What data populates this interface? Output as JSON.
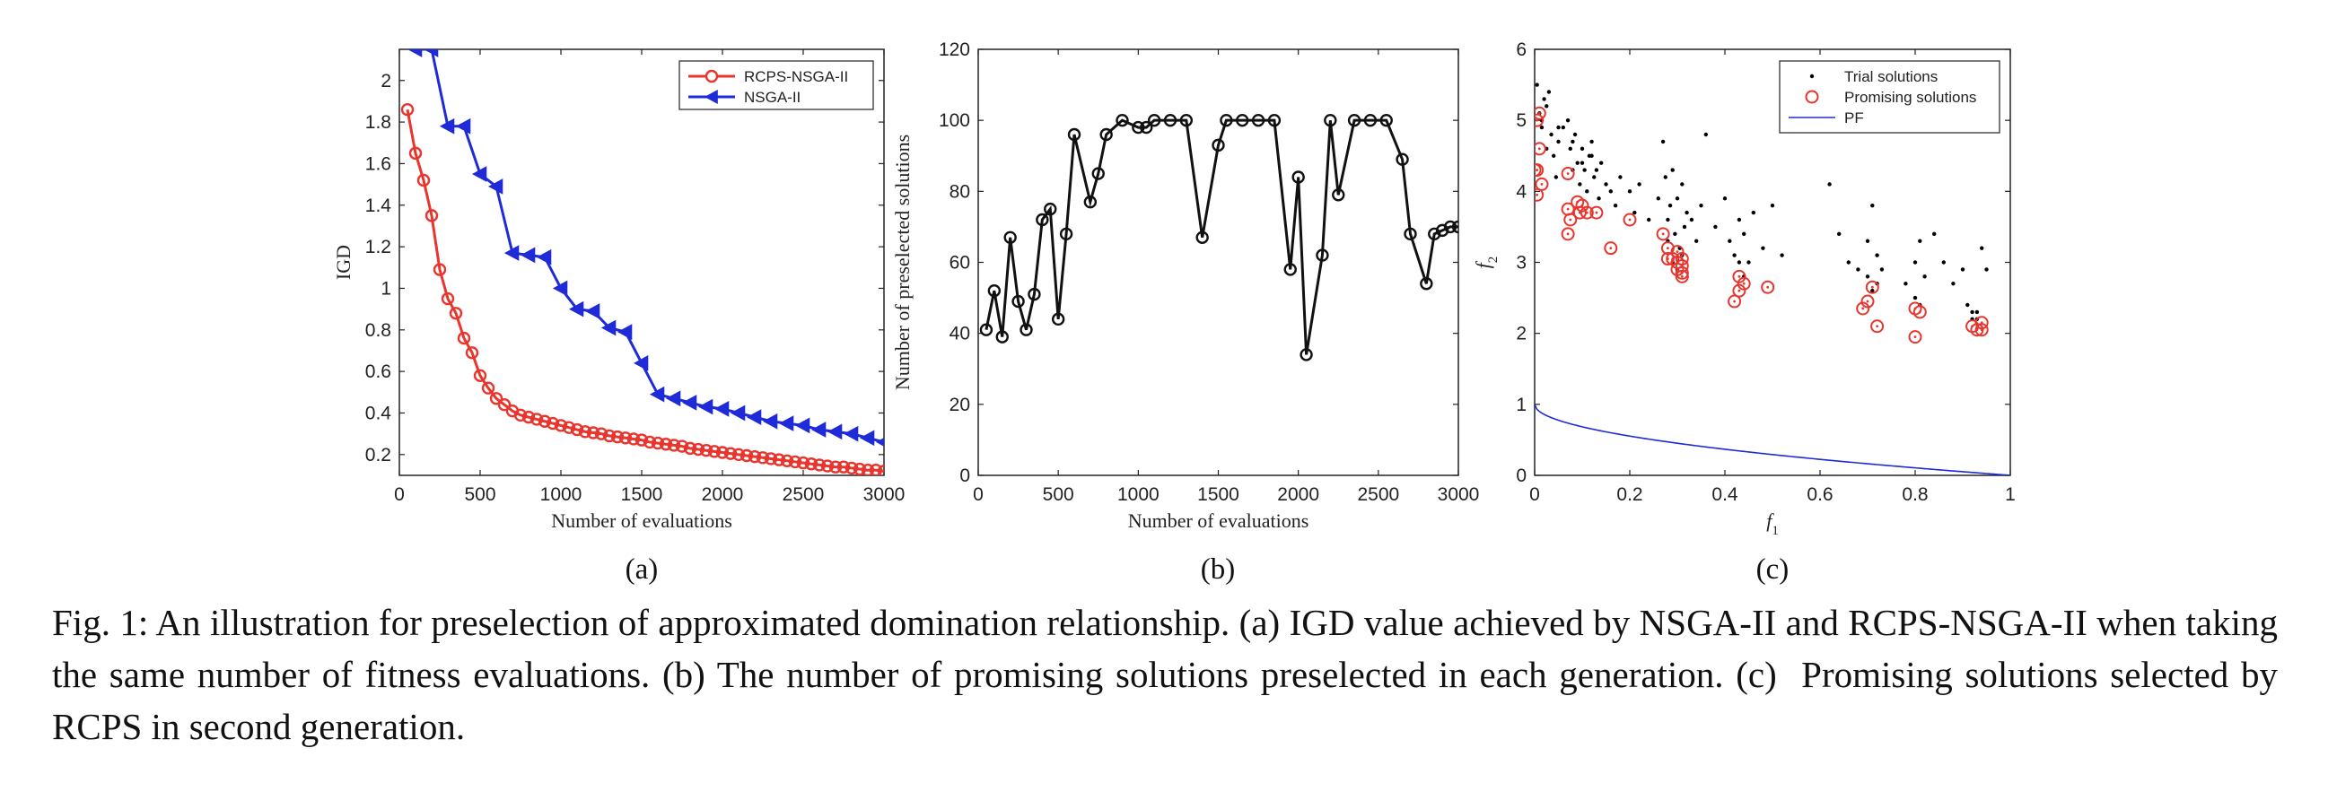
{
  "chart_data": [
    {
      "id": "a",
      "type": "line",
      "xlabel": "Number of evaluations",
      "ylabel": "IGD",
      "xlim": [
        0,
        3000
      ],
      "ylim": [
        0.1,
        2.15
      ],
      "xticks": [
        0,
        500,
        1000,
        1500,
        2000,
        2500,
        3000
      ],
      "yticks": [
        0.2,
        0.4,
        0.6,
        0.8,
        1,
        1.2,
        1.4,
        1.6,
        1.8,
        2
      ],
      "legend_position": "top-right",
      "sublabel": "(a)",
      "series": [
        {
          "name": "RCPS-NSGA-II",
          "color": "#e8352e",
          "marker": "circle",
          "x": [
            50,
            100,
            150,
            200,
            250,
            300,
            350,
            400,
            450,
            500,
            550,
            600,
            650,
            700,
            750,
            800,
            850,
            900,
            950,
            1000,
            1050,
            1100,
            1150,
            1200,
            1250,
            1300,
            1350,
            1400,
            1450,
            1500,
            1550,
            1600,
            1650,
            1700,
            1750,
            1800,
            1850,
            1900,
            1950,
            2000,
            2050,
            2100,
            2150,
            2200,
            2250,
            2300,
            2350,
            2400,
            2450,
            2500,
            2550,
            2600,
            2650,
            2700,
            2750,
            2800,
            2850,
            2900,
            2950,
            3000
          ],
          "y": [
            1.86,
            1.65,
            1.52,
            1.35,
            1.09,
            0.95,
            0.88,
            0.76,
            0.69,
            0.58,
            0.52,
            0.47,
            0.44,
            0.41,
            0.39,
            0.38,
            0.37,
            0.36,
            0.35,
            0.34,
            0.33,
            0.32,
            0.31,
            0.305,
            0.3,
            0.29,
            0.285,
            0.28,
            0.275,
            0.27,
            0.26,
            0.255,
            0.25,
            0.245,
            0.24,
            0.23,
            0.225,
            0.22,
            0.215,
            0.21,
            0.205,
            0.2,
            0.195,
            0.19,
            0.185,
            0.18,
            0.175,
            0.17,
            0.165,
            0.16,
            0.155,
            0.15,
            0.145,
            0.14,
            0.14,
            0.135,
            0.13,
            0.125,
            0.125,
            0.12
          ]
        },
        {
          "name": "NSGA-II",
          "color": "#1f2bd6",
          "marker": "triangle-left",
          "x": [
            100,
            200,
            300,
            400,
            500,
            600,
            700,
            800,
            900,
            1000,
            1100,
            1200,
            1300,
            1400,
            1500,
            1600,
            1700,
            1800,
            1900,
            2000,
            2100,
            2200,
            2300,
            2400,
            2500,
            2600,
            2700,
            2800,
            2900,
            3000
          ],
          "y": [
            2.15,
            2.15,
            1.78,
            1.78,
            1.55,
            1.49,
            1.17,
            1.16,
            1.15,
            1.0,
            0.9,
            0.89,
            0.81,
            0.79,
            0.64,
            0.49,
            0.47,
            0.45,
            0.43,
            0.42,
            0.4,
            0.38,
            0.36,
            0.35,
            0.34,
            0.32,
            0.31,
            0.3,
            0.28,
            0.26
          ]
        }
      ]
    },
    {
      "id": "b",
      "type": "line",
      "xlabel": "Number of evaluations",
      "ylabel": "Number of preselected solutions",
      "xlim": [
        0,
        3000
      ],
      "ylim": [
        0,
        120
      ],
      "xticks": [
        0,
        500,
        1000,
        1500,
        2000,
        2500,
        3000
      ],
      "yticks": [
        0,
        20,
        40,
        60,
        80,
        100,
        120
      ],
      "sublabel": "(b)",
      "series": [
        {
          "name": "preselected",
          "color": "#111111",
          "marker": "circle",
          "x": [
            50,
            100,
            150,
            200,
            250,
            300,
            350,
            400,
            450,
            500,
            550,
            600,
            700,
            750,
            800,
            900,
            1000,
            1050,
            1100,
            1200,
            1300,
            1400,
            1500,
            1550,
            1650,
            1750,
            1850,
            1950,
            2000,
            2050,
            2150,
            2200,
            2250,
            2350,
            2450,
            2550,
            2650,
            2700,
            2800,
            2850,
            2900,
            2950,
            3000
          ],
          "y": [
            41,
            52,
            39,
            67,
            49,
            41,
            51,
            72,
            75,
            44,
            68,
            96,
            77,
            85,
            96,
            100,
            98,
            98,
            100,
            100,
            100,
            67,
            93,
            100,
            100,
            100,
            100,
            58,
            84,
            34,
            62,
            100,
            79,
            100,
            100,
            100,
            89,
            68,
            54,
            68,
            69,
            70,
            70
          ]
        }
      ]
    },
    {
      "id": "c",
      "type": "scatter",
      "xlabel": "f",
      "xlabel_sub": "1",
      "ylabel": "f",
      "ylabel_sub": "2",
      "xlim": [
        0,
        1
      ],
      "ylim": [
        0,
        6
      ],
      "xticks": [
        0,
        0.2,
        0.4,
        0.6,
        0.8,
        1
      ],
      "yticks": [
        0,
        1,
        2,
        3,
        4,
        5,
        6
      ],
      "legend_position": "top-right",
      "sublabel": "(c)",
      "series": [
        {
          "name": "Trial solutions",
          "color": "#000000",
          "marker": "dot",
          "x": [
            0.005,
            0.01,
            0.015,
            0.02,
            0.025,
            0.03,
            0.035,
            0.04,
            0.045,
            0.05,
            0.06,
            0.07,
            0.075,
            0.08,
            0.085,
            0.09,
            0.095,
            0.1,
            0.105,
            0.11,
            0.115,
            0.12,
            0.125,
            0.13,
            0.135,
            0.14,
            0.15,
            0.16,
            0.17,
            0.18,
            0.2,
            0.21,
            0.22,
            0.24,
            0.26,
            0.27,
            0.275,
            0.28,
            0.285,
            0.29,
            0.295,
            0.3,
            0.305,
            0.31,
            0.315,
            0.32,
            0.33,
            0.34,
            0.35,
            0.36,
            0.38,
            0.4,
            0.41,
            0.42,
            0.43,
            0.44,
            0.45,
            0.46,
            0.48,
            0.5,
            0.52,
            0.62,
            0.64,
            0.66,
            0.68,
            0.7,
            0.7,
            0.71,
            0.72,
            0.73,
            0.78,
            0.8,
            0.81,
            0.82,
            0.84,
            0.86,
            0.88,
            0.9,
            0.91,
            0.92,
            0.93,
            0.94,
            0.95,
            0.015,
            0.025,
            0.05,
            0.08,
            0.1,
            0.12,
            0.29,
            0.3,
            0.31,
            0.28,
            0.43,
            0.44,
            0.71,
            0.72,
            0.8,
            0.81,
            0.92,
            0.93
          ],
          "y": [
            5.5,
            5.1,
            4.9,
            5.3,
            4.6,
            5.4,
            4.8,
            4.5,
            4.2,
            4.7,
            4.9,
            5.0,
            4.6,
            4.3,
            4.8,
            4.4,
            4.1,
            4.6,
            4.3,
            4.0,
            4.5,
            4.7,
            4.2,
            4.3,
            3.9,
            4.4,
            4.1,
            4.0,
            3.8,
            4.2,
            4.0,
            3.7,
            4.1,
            3.6,
            3.9,
            4.7,
            4.2,
            3.6,
            3.8,
            4.3,
            3.4,
            3.9,
            3.2,
            4.1,
            3.5,
            3.7,
            3.6,
            3.3,
            3.8,
            4.8,
            3.5,
            3.9,
            3.3,
            3.1,
            3.6,
            3.4,
            3.0,
            3.7,
            3.2,
            3.8,
            3.1,
            4.1,
            3.4,
            3.0,
            2.9,
            3.3,
            2.8,
            3.8,
            3.1,
            2.9,
            2.7,
            3.0,
            3.3,
            2.8,
            3.4,
            3.0,
            2.7,
            2.9,
            2.4,
            2.2,
            2.3,
            3.2,
            2.9,
            5.0,
            5.2,
            4.9,
            4.7,
            4.4,
            4.5,
            3.0,
            2.9,
            3.1,
            3.3,
            3.0,
            2.8,
            2.6,
            2.7,
            2.5,
            2.4,
            2.3,
            2.2
          ]
        },
        {
          "name": "Promising solutions",
          "color": "#e8352e",
          "marker": "circle-open",
          "x": [
            0.0,
            0.005,
            0.01,
            0.005,
            0.01,
            0.015,
            0.005,
            0.07,
            0.07,
            0.075,
            0.07,
            0.09,
            0.1,
            0.095,
            0.11,
            0.13,
            0.16,
            0.2,
            0.27,
            0.28,
            0.28,
            0.29,
            0.3,
            0.3,
            0.3,
            0.31,
            0.31,
            0.31,
            0.31,
            0.42,
            0.43,
            0.43,
            0.44,
            0.49,
            0.69,
            0.7,
            0.71,
            0.72,
            0.8,
            0.8,
            0.81,
            0.92,
            0.93,
            0.94,
            0.94
          ],
          "y": [
            4.3,
            4.3,
            5.1,
            5.0,
            4.6,
            4.1,
            3.95,
            4.25,
            3.75,
            3.6,
            3.4,
            3.85,
            3.8,
            3.7,
            3.7,
            3.7,
            3.2,
            3.6,
            3.4,
            3.2,
            3.05,
            3.05,
            3.15,
            3.0,
            2.9,
            3.05,
            2.95,
            2.85,
            2.8,
            2.45,
            2.6,
            2.8,
            2.7,
            2.65,
            2.35,
            2.45,
            2.65,
            2.1,
            2.35,
            1.95,
            2.3,
            2.1,
            2.05,
            2.15,
            2.05
          ]
        },
        {
          "name": "PF",
          "color": "#1f2bd6",
          "marker": "none",
          "formula": "1 - sqrt(f1)"
        }
      ]
    }
  ],
  "caption": "Fig. 1: An illustration for preselection of approximated domination relationship. (a) IGD value achieved by NSGA-II and RCPS-NSGA-II when taking the same number of fitness evaluations. (b) The number of promising solutions preselected in each generation. (c)  Promising solutions selected by RCPS in second generation."
}
